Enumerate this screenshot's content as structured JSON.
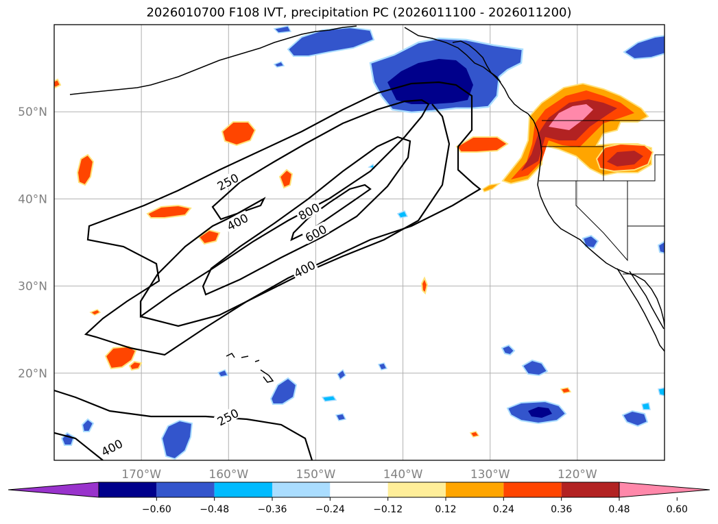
{
  "title": "2026010700 F108 IVT, precipitation PC (2026011100 - 2026011200)",
  "colors": {
    "grid": "#b0b0b0",
    "coast": "#000000",
    "contour": "#000000"
  },
  "lat_labels": [
    {
      "lat": 50,
      "label": "50°N"
    },
    {
      "lat": 40,
      "label": "40°N"
    },
    {
      "lat": 30,
      "label": "30°N"
    },
    {
      "lat": 20,
      "label": "20°N"
    }
  ],
  "lon_labels": [
    {
      "lon": -170,
      "label": "170°W"
    },
    {
      "lon": -160,
      "label": "160°W"
    },
    {
      "lon": -150,
      "label": "150°W"
    },
    {
      "lon": -140,
      "label": "140°W"
    },
    {
      "lon": -130,
      "label": "130°W"
    },
    {
      "lon": -120,
      "label": "120°W"
    }
  ],
  "ivt_contour_labels": [
    {
      "value": "250",
      "lon": -160,
      "lat": 41.8
    },
    {
      "value": "400",
      "lon": -158.9,
      "lat": 37.2
    },
    {
      "value": "800",
      "lon": -150.7,
      "lat": 38.4
    },
    {
      "value": "600",
      "lon": -149.9,
      "lat": 35.9
    },
    {
      "value": "400",
      "lon": -151.2,
      "lat": 31.8
    },
    {
      "value": "250",
      "lon": -160,
      "lat": 14.8
    },
    {
      "value": "400",
      "lon": -173.3,
      "lat": 11.3
    }
  ],
  "colorbar": {
    "colors": [
      "#9933cc",
      "#00008b",
      "#3355cc",
      "#00bbff",
      "#aaddff",
      "#ffffff",
      "#ffee99",
      "#ffa500",
      "#ff4500",
      "#b22222",
      "#ff88aa"
    ],
    "ticks": [
      "−0.60",
      "−0.48",
      "−0.36",
      "−0.24",
      "−0.12",
      "0.12",
      "0.24",
      "0.36",
      "0.48",
      "0.60"
    ]
  }
}
